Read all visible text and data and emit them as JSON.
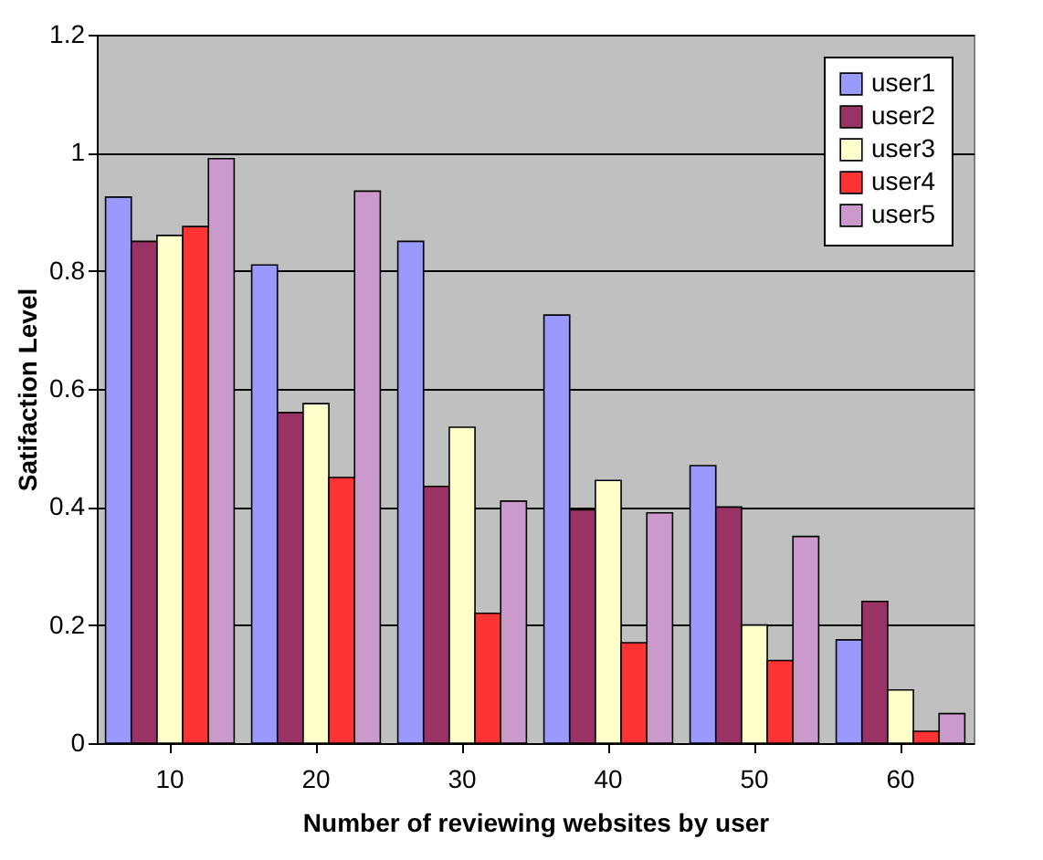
{
  "chart_data": {
    "type": "bar",
    "xlabel": "Number of reviewing websites by user",
    "ylabel": "Satifaction Level",
    "categories": [
      "10",
      "20",
      "30",
      "40",
      "50",
      "60"
    ],
    "series": [
      {
        "name": "user1",
        "color": "#9999ff",
        "values": [
          0.925,
          0.81,
          0.85,
          0.725,
          0.47,
          0.175
        ]
      },
      {
        "name": "user2",
        "color": "#993366",
        "values": [
          0.85,
          0.56,
          0.435,
          0.395,
          0.4,
          0.24
        ]
      },
      {
        "name": "user3",
        "color": "#ffffcc",
        "values": [
          0.86,
          0.575,
          0.535,
          0.445,
          0.2,
          0.09
        ]
      },
      {
        "name": "user4",
        "color": "#ff3333",
        "values": [
          0.875,
          0.45,
          0.22,
          0.17,
          0.14,
          0.02
        ]
      },
      {
        "name": "user5",
        "color": "#cc99cc",
        "values": [
          0.99,
          0.935,
          0.41,
          0.39,
          0.35,
          0.05
        ]
      }
    ],
    "ylim": [
      0,
      1.2
    ],
    "yticks": [
      0,
      0.2,
      0.4,
      0.6,
      0.8,
      1,
      1.2
    ],
    "grid": "y",
    "legend": "top right"
  }
}
